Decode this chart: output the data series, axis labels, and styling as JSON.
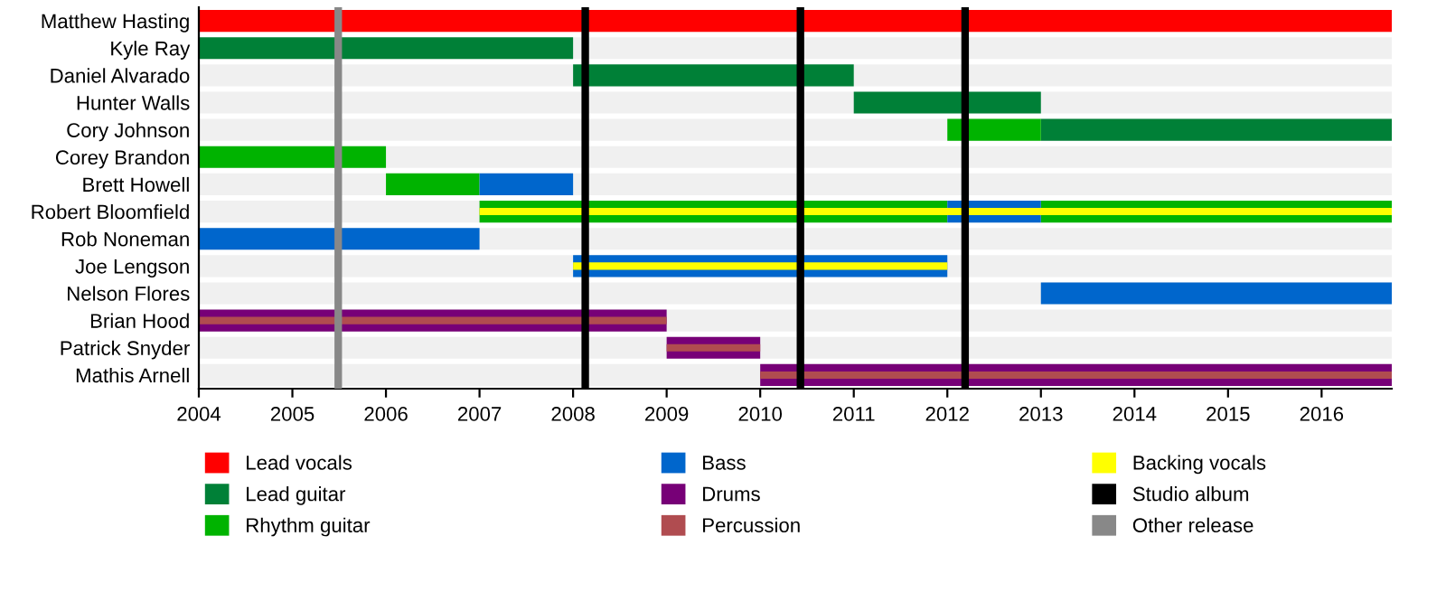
{
  "chart_data": {
    "type": "bar",
    "orientation": "horizontal",
    "categories": [
      "Matthew Hasting",
      "Kyle Ray",
      "Daniel Alvarado",
      "Hunter Walls",
      "Cory Johnson",
      "Corey Brandon",
      "Brett Howell",
      "Robert Bloomfield",
      "Rob Noneman",
      "Joe Lengson",
      "Nelson Flores",
      "Brian Hood",
      "Patrick Snyder",
      "Mathis Arnell"
    ],
    "series": [
      {
        "name": "Lead vocals",
        "color": "#ff0000",
        "base": [
          2004,
          null,
          null,
          null,
          null,
          null,
          null,
          null,
          null,
          null,
          null,
          null,
          null,
          null
        ],
        "values": [
          12.75,
          null,
          null,
          null,
          null,
          null,
          null,
          null,
          null,
          null,
          null,
          null,
          null,
          null
        ]
      },
      {
        "name": "Lead guitar",
        "color": "#008037",
        "base": [
          null,
          2004,
          2008,
          2011,
          2013,
          null,
          null,
          null,
          null,
          null,
          null,
          null,
          null,
          null
        ],
        "values": [
          null,
          4,
          3,
          2,
          3.75,
          null,
          null,
          null,
          null,
          null,
          null,
          null,
          null,
          null
        ]
      },
      {
        "name": "Rhythm guitar",
        "color": "#00b300",
        "base": [
          null,
          null,
          null,
          null,
          2012,
          2004,
          2006,
          2007,
          null,
          null,
          null,
          null,
          null,
          null
        ],
        "values": [
          null,
          null,
          null,
          null,
          1,
          2,
          1,
          5,
          null,
          null,
          null,
          null,
          null,
          null
        ]
      },
      {
        "color": "#00b300",
        "base": [
          null,
          null,
          null,
          null,
          null,
          null,
          null,
          2013,
          null,
          null,
          null,
          null,
          null,
          null
        ],
        "values": [
          null,
          null,
          null,
          null,
          null,
          null,
          null,
          3.75,
          null,
          null,
          null,
          null,
          null,
          null
        ]
      },
      {
        "name": "Bass",
        "color": "#0066cc",
        "base": [
          null,
          null,
          null,
          null,
          null,
          null,
          2007,
          2012,
          2004,
          2008,
          2013,
          null,
          null,
          null
        ],
        "values": [
          null,
          null,
          null,
          null,
          null,
          null,
          1,
          1,
          3,
          4,
          3.75,
          null,
          null,
          null
        ]
      },
      {
        "name": "Drums",
        "color": "#770077",
        "base": [
          null,
          null,
          null,
          null,
          null,
          null,
          null,
          null,
          null,
          null,
          null,
          2004,
          2009,
          2010
        ],
        "values": [
          null,
          null,
          null,
          null,
          null,
          null,
          null,
          null,
          null,
          null,
          null,
          5,
          1,
          6.75
        ]
      },
      {
        "name": "Percussion",
        "color": "#b04c50",
        "base": [
          null,
          null,
          null,
          null,
          null,
          null,
          null,
          null,
          null,
          null,
          null,
          2004,
          2009,
          2010
        ],
        "values": [
          null,
          null,
          null,
          null,
          null,
          null,
          null,
          null,
          null,
          null,
          null,
          5,
          1,
          6.75
        ]
      },
      {
        "name": "Backing vocals",
        "color": "#ffff00",
        "base": [
          null,
          null,
          null,
          null,
          null,
          null,
          null,
          2007,
          null,
          2008,
          null,
          null,
          null,
          null
        ],
        "values": [
          null,
          null,
          null,
          null,
          null,
          null,
          null,
          9.75,
          null,
          4,
          null,
          null,
          null,
          null
        ]
      }
    ],
    "ref_lines": [
      {
        "axis": "x",
        "value": 2008.13,
        "label": "Studio album",
        "color": "#000000"
      },
      {
        "axis": "x",
        "value": 2010.43,
        "color": "#000000"
      },
      {
        "axis": "x",
        "value": 2012.19,
        "color": "#000000"
      },
      {
        "axis": "x",
        "value": 2005.49,
        "label": "Other release",
        "color": "#888888"
      }
    ],
    "xlim": [
      2004,
      2016.75
    ],
    "xticks": [
      2004,
      2005,
      2006,
      2007,
      2008,
      2009,
      2010,
      2011,
      2012,
      2013,
      2014,
      2015,
      2016
    ],
    "legend": "bottom",
    "grid": false
  }
}
